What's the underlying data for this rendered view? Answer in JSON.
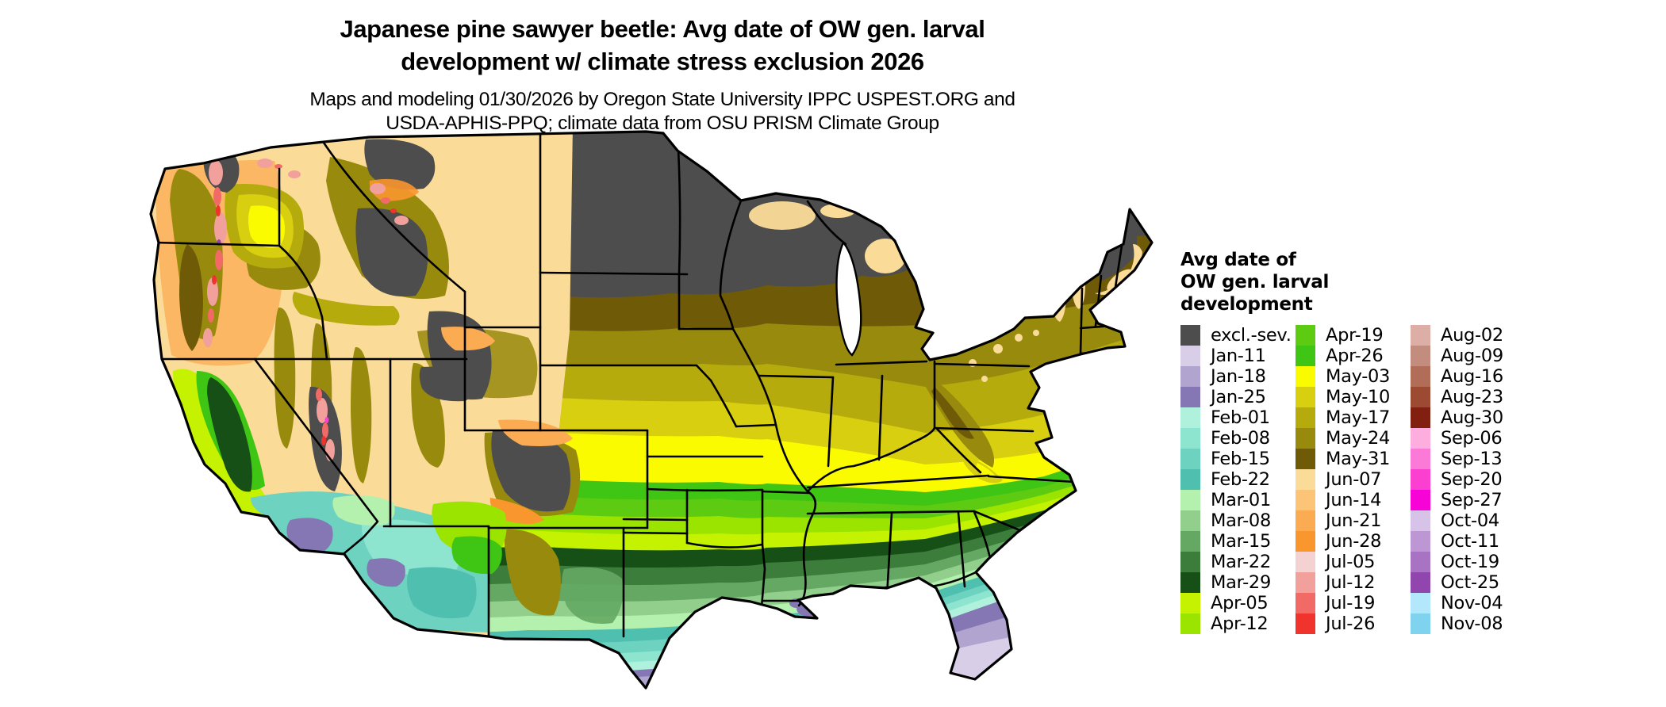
{
  "page": {
    "background": "#ffffff"
  },
  "header": {
    "title_line1": "Japanese pine sawyer beetle: Avg date of OW gen. larval",
    "title_line2": "development w/ climate stress exclusion 2026",
    "subtitle_line1": "Maps and modeling 01/30/2026 by Oregon State University IPPC USPEST.ORG and",
    "subtitle_line2": "USDA-APHIS-PPQ; climate data from OSU PRISM Climate Group"
  },
  "legend": {
    "title_lines": [
      "Avg date of",
      "OW gen. larval",
      "development"
    ],
    "columns": [
      [
        {
          "label": "excl.-sev.",
          "color": "#4d4d4d"
        },
        {
          "label": "Jan-11",
          "color": "#d8cee8"
        },
        {
          "label": "Jan-18",
          "color": "#b1a4cf"
        },
        {
          "label": "Jan-25",
          "color": "#8577b3"
        },
        {
          "label": "Feb-01",
          "color": "#aff1dc"
        },
        {
          "label": "Feb-08",
          "color": "#8de5cf"
        },
        {
          "label": "Feb-15",
          "color": "#6ed2c1"
        },
        {
          "label": "Feb-22",
          "color": "#4fc0b0"
        },
        {
          "label": "Mar-01",
          "color": "#b4f1af"
        },
        {
          "label": "Mar-08",
          "color": "#92cf8d"
        },
        {
          "label": "Mar-15",
          "color": "#64a863"
        },
        {
          "label": "Mar-22",
          "color": "#3c7d3c"
        },
        {
          "label": "Mar-29",
          "color": "#175017"
        },
        {
          "label": "Apr-05",
          "color": "#c4f200"
        },
        {
          "label": "Apr-12",
          "color": "#9ae400"
        }
      ],
      [
        {
          "label": "Apr-19",
          "color": "#5ecb13"
        },
        {
          "label": "Apr-26",
          "color": "#3fc514"
        },
        {
          "label": "May-03",
          "color": "#fbfb00"
        },
        {
          "label": "May-10",
          "color": "#d8cf10"
        },
        {
          "label": "May-17",
          "color": "#b5ab0d"
        },
        {
          "label": "May-24",
          "color": "#978a0c"
        },
        {
          "label": "May-31",
          "color": "#6f5a08"
        },
        {
          "label": "Jun-07",
          "color": "#fbdb98"
        },
        {
          "label": "Jun-14",
          "color": "#fcc477"
        },
        {
          "label": "Jun-21",
          "color": "#fbab51"
        },
        {
          "label": "Jun-28",
          "color": "#f9962e"
        },
        {
          "label": "Jul-05",
          "color": "#f4d2d2"
        },
        {
          "label": "Jul-12",
          "color": "#f2a09c"
        },
        {
          "label": "Jul-19",
          "color": "#f16a66"
        },
        {
          "label": "Jul-26",
          "color": "#f0332c"
        }
      ],
      [
        {
          "label": "Aug-02",
          "color": "#dcaea6"
        },
        {
          "label": "Aug-09",
          "color": "#c28d7f"
        },
        {
          "label": "Aug-16",
          "color": "#b26d58"
        },
        {
          "label": "Aug-23",
          "color": "#9d4a33"
        },
        {
          "label": "Aug-30",
          "color": "#811f10"
        },
        {
          "label": "Sep-06",
          "color": "#fdaede"
        },
        {
          "label": "Sep-13",
          "color": "#fc7ad7"
        },
        {
          "label": "Sep-20",
          "color": "#fb3fd1"
        },
        {
          "label": "Sep-27",
          "color": "#f702d7"
        },
        {
          "label": "Oct-04",
          "color": "#d7c3e8"
        },
        {
          "label": "Oct-11",
          "color": "#bc97d4"
        },
        {
          "label": "Oct-19",
          "color": "#a873c2"
        },
        {
          "label": "Oct-25",
          "color": "#9046ad"
        },
        {
          "label": "Nov-04",
          "color": "#b3e7fb"
        },
        {
          "label": "Nov-08",
          "color": "#7fd3ee"
        }
      ]
    ]
  }
}
